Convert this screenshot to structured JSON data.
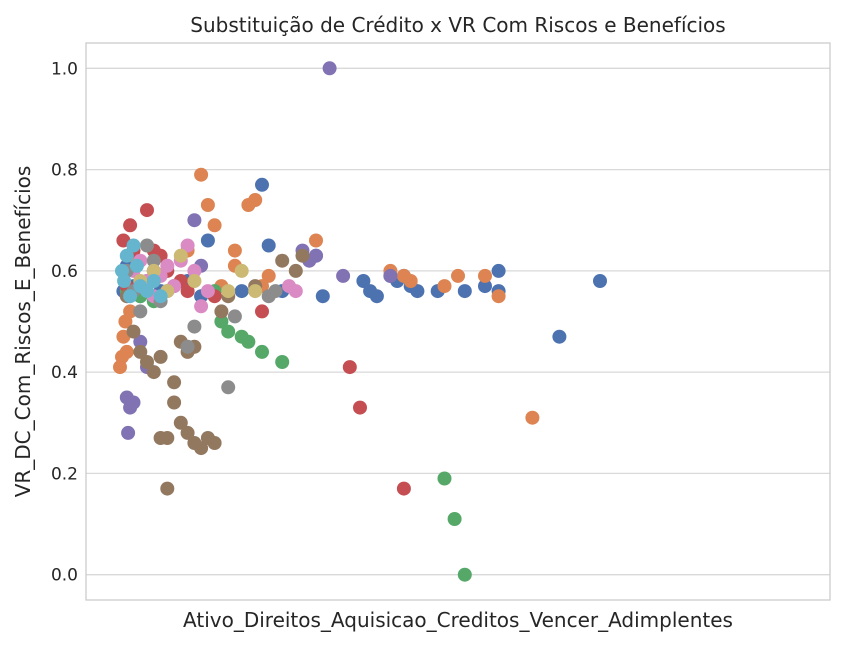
{
  "chart_data": {
    "type": "scatter",
    "title": "Substituição de Crédito x VR Com Riscos e Benefícios",
    "xlabel": "Ativo_Direitos_Aquisicao_Creditos_Vencer_Adimplentes",
    "ylabel": "VR_DC_Com_Riscos_E_Benefícios",
    "ylim": [
      -0.05,
      1.05
    ],
    "yticks": [
      0.0,
      0.2,
      0.4,
      0.6,
      0.8,
      1.0
    ],
    "ytick_labels": [
      "0.0",
      "0.2",
      "0.4",
      "0.6",
      "0.8",
      "1.0"
    ],
    "xlim": [
      0,
      100
    ],
    "x_ticks_shown": false,
    "grid": true,
    "legend": "none",
    "colors": [
      "#4c72b0",
      "#dd8452",
      "#55a868",
      "#c44e52",
      "#8172b3",
      "#937860",
      "#da8bc3",
      "#8c8c8c",
      "#ccb974",
      "#64b5cd"
    ],
    "series": [
      {
        "color": "#4c72b0",
        "points": [
          [
            0.5,
            0.56
          ],
          [
            1,
            0.61
          ],
          [
            2,
            0.57
          ],
          [
            3,
            0.55
          ],
          [
            4,
            0.58
          ],
          [
            5,
            0.6
          ],
          [
            6,
            0.56
          ],
          [
            8,
            0.57
          ],
          [
            10,
            0.58
          ],
          [
            12,
            0.55
          ],
          [
            13,
            0.66
          ],
          [
            18,
            0.56
          ],
          [
            21,
            0.77
          ],
          [
            22,
            0.65
          ],
          [
            24,
            0.56
          ],
          [
            29,
            0.63
          ],
          [
            30,
            0.55
          ],
          [
            36,
            0.58
          ],
          [
            37,
            0.56
          ],
          [
            38,
            0.55
          ],
          [
            40,
            0.59
          ],
          [
            41,
            0.58
          ],
          [
            42,
            0.59
          ],
          [
            43,
            0.57
          ],
          [
            44,
            0.56
          ],
          [
            47,
            0.56
          ],
          [
            51,
            0.56
          ],
          [
            54,
            0.57
          ],
          [
            56,
            0.6
          ],
          [
            56,
            0.56
          ],
          [
            65,
            0.47
          ],
          [
            71,
            0.58
          ]
        ]
      },
      {
        "color": "#dd8452",
        "points": [
          [
            0,
            0.41
          ],
          [
            0.3,
            0.43
          ],
          [
            0.5,
            0.47
          ],
          [
            0.8,
            0.5
          ],
          [
            1,
            0.44
          ],
          [
            1.5,
            0.52
          ],
          [
            2,
            0.63
          ],
          [
            3,
            0.57
          ],
          [
            8,
            0.57
          ],
          [
            10,
            0.64
          ],
          [
            12,
            0.79
          ],
          [
            13,
            0.73
          ],
          [
            14,
            0.69
          ],
          [
            15,
            0.57
          ],
          [
            17,
            0.61
          ],
          [
            17,
            0.64
          ],
          [
            19,
            0.73
          ],
          [
            20,
            0.74
          ],
          [
            21,
            0.57
          ],
          [
            22,
            0.59
          ],
          [
            29,
            0.66
          ],
          [
            40,
            0.6
          ],
          [
            42,
            0.59
          ],
          [
            43,
            0.58
          ],
          [
            48,
            0.57
          ],
          [
            50,
            0.59
          ],
          [
            54,
            0.59
          ],
          [
            56,
            0.55
          ],
          [
            61,
            0.31
          ]
        ]
      },
      {
        "color": "#55a868",
        "points": [
          [
            1,
            0.56
          ],
          [
            3,
            0.55
          ],
          [
            5,
            0.54
          ],
          [
            14,
            0.56
          ],
          [
            15,
            0.5
          ],
          [
            16,
            0.48
          ],
          [
            18,
            0.47
          ],
          [
            19,
            0.46
          ],
          [
            21,
            0.44
          ],
          [
            24,
            0.42
          ],
          [
            48,
            0.19
          ],
          [
            49.5,
            0.11
          ],
          [
            51,
            0.0
          ]
        ]
      },
      {
        "color": "#c44e52",
        "points": [
          [
            0.5,
            0.66
          ],
          [
            1,
            0.57
          ],
          [
            1.5,
            0.69
          ],
          [
            2,
            0.64
          ],
          [
            4,
            0.72
          ],
          [
            5,
            0.64
          ],
          [
            6,
            0.63
          ],
          [
            7,
            0.6
          ],
          [
            9,
            0.58
          ],
          [
            10,
            0.56
          ],
          [
            14,
            0.55
          ],
          [
            21,
            0.52
          ],
          [
            34,
            0.41
          ],
          [
            35.5,
            0.33
          ],
          [
            42,
            0.17
          ]
        ]
      },
      {
        "color": "#8172b3",
        "points": [
          [
            1,
            0.35
          ],
          [
            1.5,
            0.33
          ],
          [
            2,
            0.34
          ],
          [
            1.2,
            0.28
          ],
          [
            3,
            0.46
          ],
          [
            4,
            0.41
          ],
          [
            7,
            0.56
          ],
          [
            11,
            0.7
          ],
          [
            12,
            0.61
          ],
          [
            27,
            0.64
          ],
          [
            28,
            0.62
          ],
          [
            29,
            0.63
          ],
          [
            31,
            1.0
          ],
          [
            33,
            0.59
          ],
          [
            40,
            0.59
          ]
        ]
      },
      {
        "color": "#937860",
        "points": [
          [
            1,
            0.55
          ],
          [
            2,
            0.48
          ],
          [
            3,
            0.44
          ],
          [
            4,
            0.42
          ],
          [
            5,
            0.4
          ],
          [
            6,
            0.43
          ],
          [
            6,
            0.27
          ],
          [
            7,
            0.17
          ],
          [
            7,
            0.27
          ],
          [
            8,
            0.34
          ],
          [
            8,
            0.38
          ],
          [
            9,
            0.3
          ],
          [
            10,
            0.28
          ],
          [
            11,
            0.26
          ],
          [
            12,
            0.25
          ],
          [
            9,
            0.46
          ],
          [
            10,
            0.44
          ],
          [
            11,
            0.45
          ],
          [
            13,
            0.27
          ],
          [
            14,
            0.26
          ],
          [
            15,
            0.52
          ],
          [
            16,
            0.55
          ],
          [
            20,
            0.57
          ],
          [
            24,
            0.62
          ],
          [
            26,
            0.6
          ],
          [
            27,
            0.63
          ]
        ]
      },
      {
        "color": "#da8bc3",
        "points": [
          [
            2,
            0.6
          ],
          [
            3,
            0.62
          ],
          [
            4,
            0.58
          ],
          [
            5,
            0.55
          ],
          [
            6,
            0.59
          ],
          [
            7,
            0.61
          ],
          [
            8,
            0.57
          ],
          [
            9,
            0.62
          ],
          [
            10,
            0.65
          ],
          [
            11,
            0.6
          ],
          [
            12,
            0.53
          ],
          [
            13,
            0.56
          ],
          [
            25,
            0.57
          ],
          [
            26,
            0.56
          ]
        ]
      },
      {
        "color": "#8c8c8c",
        "points": [
          [
            1,
            0.6
          ],
          [
            2,
            0.56
          ],
          [
            3,
            0.52
          ],
          [
            4,
            0.65
          ],
          [
            5,
            0.62
          ],
          [
            6,
            0.54
          ],
          [
            10,
            0.45
          ],
          [
            11,
            0.49
          ],
          [
            16,
            0.37
          ],
          [
            17,
            0.51
          ],
          [
            22,
            0.55
          ],
          [
            23,
            0.56
          ]
        ]
      },
      {
        "color": "#ccb974",
        "points": [
          [
            3,
            0.58
          ],
          [
            5,
            0.6
          ],
          [
            7,
            0.56
          ],
          [
            9,
            0.63
          ],
          [
            11,
            0.58
          ],
          [
            16,
            0.56
          ],
          [
            18,
            0.6
          ],
          [
            20,
            0.56
          ]
        ]
      },
      {
        "color": "#64b5cd",
        "points": [
          [
            0.3,
            0.6
          ],
          [
            0.6,
            0.58
          ],
          [
            1,
            0.63
          ],
          [
            1.5,
            0.55
          ],
          [
            2,
            0.65
          ],
          [
            2.5,
            0.61
          ],
          [
            3,
            0.57
          ],
          [
            4,
            0.56
          ],
          [
            5,
            0.58
          ],
          [
            6,
            0.55
          ]
        ]
      }
    ]
  }
}
